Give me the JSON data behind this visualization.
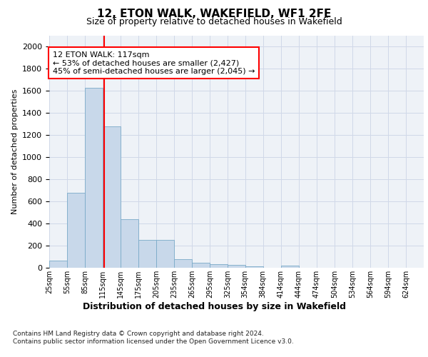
{
  "title": "12, ETON WALK, WAKEFIELD, WF1 2FE",
  "subtitle": "Size of property relative to detached houses in Wakefield",
  "xlabel": "Distribution of detached houses by size in Wakefield",
  "ylabel": "Number of detached properties",
  "footer1": "Contains HM Land Registry data © Crown copyright and database right 2024.",
  "footer2": "Contains public sector information licensed under the Open Government Licence v3.0.",
  "annotation_line1": "12 ETON WALK: 117sqm",
  "annotation_line2": "← 53% of detached houses are smaller (2,427)",
  "annotation_line3": "45% of semi-detached houses are larger (2,045) →",
  "bar_color": "#c8d8ea",
  "bar_edge_color": "#7aaac8",
  "red_line_x": 117,
  "categories": [
    "25sqm",
    "55sqm",
    "85sqm",
    "115sqm",
    "145sqm",
    "175sqm",
    "205sqm",
    "235sqm",
    "265sqm",
    "295sqm",
    "325sqm",
    "354sqm",
    "384sqm",
    "414sqm",
    "444sqm",
    "474sqm",
    "504sqm",
    "534sqm",
    "564sqm",
    "594sqm",
    "624sqm"
  ],
  "bin_edges": [
    25,
    55,
    85,
    115,
    145,
    175,
    205,
    235,
    265,
    295,
    325,
    354,
    384,
    414,
    444,
    474,
    504,
    534,
    564,
    594,
    624,
    654
  ],
  "values": [
    65,
    680,
    1630,
    1280,
    440,
    250,
    250,
    80,
    45,
    30,
    25,
    10,
    0,
    20,
    0,
    0,
    0,
    0,
    0,
    0,
    0
  ],
  "ylim": [
    0,
    2100
  ],
  "yticks": [
    0,
    200,
    400,
    600,
    800,
    1000,
    1200,
    1400,
    1600,
    1800,
    2000
  ],
  "grid_color": "#d0d8e8",
  "background_color": "#eef2f7",
  "title_fontsize": 11,
  "subtitle_fontsize": 9,
  "ylabel_fontsize": 8,
  "xlabel_fontsize": 9,
  "tick_fontsize": 8,
  "annotation_fontsize": 8
}
